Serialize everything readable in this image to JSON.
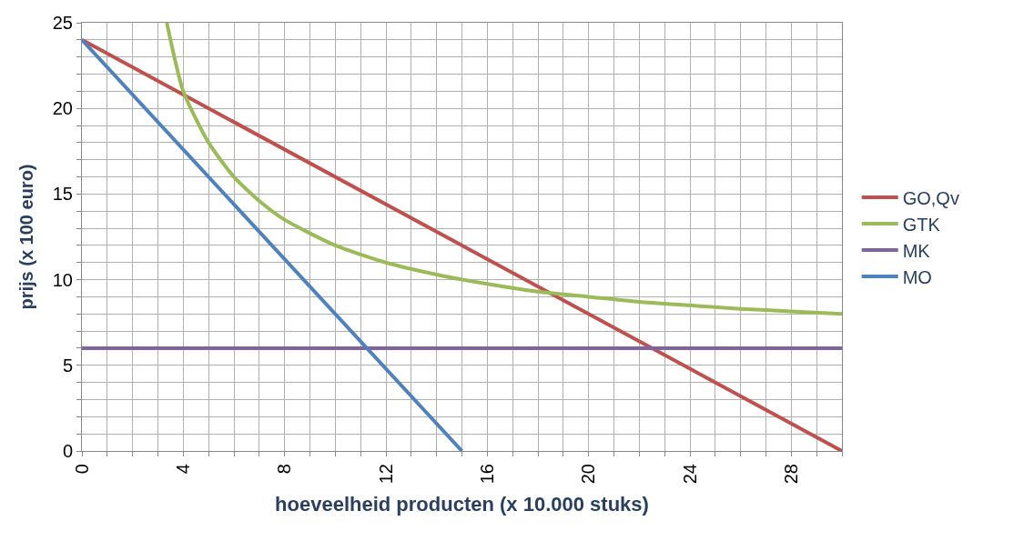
{
  "chart_data": {
    "type": "line",
    "xlabel": "hoeveelheid producten (x 10.000 stuks)",
    "ylabel": "prijs (x 100 euro)",
    "series": [
      {
        "name": "GO,Qv",
        "color": "#c0504d",
        "x": [
          0,
          30
        ],
        "values": [
          24,
          0
        ]
      },
      {
        "name": "GTK",
        "color": "#9bbb59",
        "x": [
          3.35,
          4,
          5,
          6,
          7,
          8,
          10,
          12,
          14,
          16,
          18,
          20,
          22,
          24,
          26,
          28,
          30
        ],
        "values": [
          25,
          21,
          18,
          16,
          14.6,
          13.5,
          12,
          11,
          10.3,
          9.75,
          9.3,
          9,
          8.7,
          8.5,
          8.3,
          8.15,
          8
        ]
      },
      {
        "name": "MK",
        "color": "#8064a2",
        "x": [
          0,
          30
        ],
        "values": [
          6,
          6
        ]
      },
      {
        "name": "MO",
        "color": "#4f81bd",
        "x": [
          0,
          15
        ],
        "values": [
          24,
          0
        ]
      }
    ],
    "xlim": [
      0,
      30
    ],
    "xticks": [
      0,
      {
        "value": 1,
        "label": null
      },
      {
        "value": 2,
        "label": null
      },
      {
        "value": 3,
        "label": null
      },
      4,
      {
        "value": 5,
        "label": null
      },
      {
        "value": 6,
        "label": null
      },
      {
        "value": 7,
        "label": null
      },
      8,
      {
        "value": 9,
        "label": null
      },
      {
        "value": 10,
        "label": null
      },
      {
        "value": 11,
        "label": null
      },
      12,
      {
        "value": 13,
        "label": null
      },
      {
        "value": 14,
        "label": null
      },
      {
        "value": 15,
        "label": null
      },
      16,
      {
        "value": 17,
        "label": null
      },
      {
        "value": 18,
        "label": null
      },
      {
        "value": 19,
        "label": null
      },
      20,
      {
        "value": 21,
        "label": null
      },
      {
        "value": 22,
        "label": null
      },
      {
        "value": 23,
        "label": null
      },
      24,
      {
        "value": 25,
        "label": null
      },
      {
        "value": 26,
        "label": null
      },
      {
        "value": 27,
        "label": null
      },
      28,
      {
        "value": 29,
        "label": null
      },
      {
        "value": 30,
        "label": null
      }
    ],
    "ylim": [
      0,
      25
    ],
    "yticks": [
      0,
      {
        "value": 1,
        "label": null
      },
      {
        "value": 2,
        "label": null
      },
      {
        "value": 3,
        "label": null
      },
      {
        "value": 4,
        "label": null
      },
      5,
      {
        "value": 6,
        "label": null
      },
      {
        "value": 7,
        "label": null
      },
      {
        "value": 8,
        "label": null
      },
      {
        "value": 9,
        "label": null
      },
      10,
      {
        "value": 11,
        "label": null
      },
      {
        "value": 12,
        "label": null
      },
      {
        "value": 13,
        "label": null
      },
      {
        "value": 14,
        "label": null
      },
      15,
      {
        "value": 16,
        "label": null
      },
      {
        "value": 17,
        "label": null
      },
      {
        "value": 18,
        "label": null
      },
      {
        "value": 19,
        "label": null
      },
      20,
      {
        "value": 21,
        "label": null
      },
      {
        "value": 22,
        "label": null
      },
      {
        "value": 23,
        "label": null
      },
      {
        "value": 24,
        "label": null
      },
      25
    ],
    "grid": true,
    "legend": "right",
    "marker": "none",
    "line_style": "solid"
  }
}
